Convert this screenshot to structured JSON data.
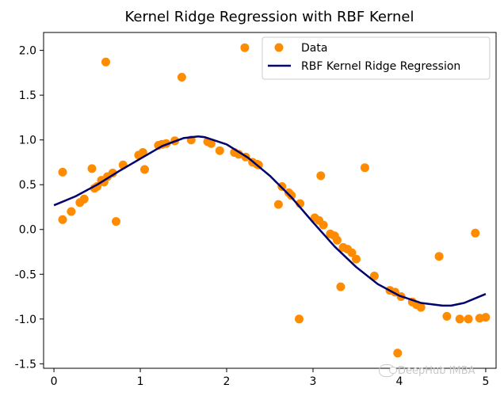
{
  "chart_data": {
    "type": "scatter",
    "title": "Kernel Ridge Regression with RBF Kernel",
    "xlabel": "",
    "ylabel": "",
    "xlim": [
      -0.12,
      5.12
    ],
    "ylim": [
      -1.55,
      2.2
    ],
    "x_ticks": [
      "0",
      "1",
      "2",
      "3",
      "4",
      "5"
    ],
    "y_ticks": [
      "-1.5",
      "-1.0",
      "-0.5",
      "0.0",
      "0.5",
      "1.0",
      "1.5",
      "2.0"
    ],
    "legend_position": "top-right",
    "series": [
      {
        "name": "Data",
        "kind": "scatter",
        "color": "#ff8c00",
        "points": [
          [
            0.1,
            0.64
          ],
          [
            0.1,
            0.11
          ],
          [
            0.2,
            0.2
          ],
          [
            0.3,
            0.3
          ],
          [
            0.35,
            0.34
          ],
          [
            0.44,
            0.68
          ],
          [
            0.47,
            0.46
          ],
          [
            0.5,
            0.48
          ],
          [
            0.55,
            0.55
          ],
          [
            0.58,
            0.53
          ],
          [
            0.6,
            1.87
          ],
          [
            0.62,
            0.59
          ],
          [
            0.68,
            0.63
          ],
          [
            0.72,
            0.09
          ],
          [
            0.8,
            0.72
          ],
          [
            0.98,
            0.83
          ],
          [
            1.03,
            0.86
          ],
          [
            1.05,
            0.67
          ],
          [
            1.21,
            0.94
          ],
          [
            1.25,
            0.95
          ],
          [
            1.3,
            0.96
          ],
          [
            1.4,
            0.99
          ],
          [
            1.48,
            1.7
          ],
          [
            1.59,
            1.0
          ],
          [
            1.78,
            0.98
          ],
          [
            1.82,
            0.96
          ],
          [
            1.92,
            0.88
          ],
          [
            2.09,
            0.86
          ],
          [
            2.14,
            0.84
          ],
          [
            2.21,
            2.03
          ],
          [
            2.22,
            0.81
          ],
          [
            2.3,
            0.75
          ],
          [
            2.35,
            0.73
          ],
          [
            2.37,
            0.72
          ],
          [
            2.6,
            0.28
          ],
          [
            2.64,
            0.48
          ],
          [
            2.72,
            0.41
          ],
          [
            2.75,
            0.38
          ],
          [
            2.84,
            -1.0
          ],
          [
            2.85,
            0.29
          ],
          [
            3.02,
            0.13
          ],
          [
            3.07,
            0.1
          ],
          [
            3.09,
            0.6
          ],
          [
            3.12,
            0.05
          ],
          [
            3.2,
            -0.05
          ],
          [
            3.25,
            -0.07
          ],
          [
            3.28,
            -0.12
          ],
          [
            3.32,
            -0.64
          ],
          [
            3.35,
            -0.2
          ],
          [
            3.4,
            -0.22
          ],
          [
            3.45,
            -0.26
          ],
          [
            3.5,
            -0.33
          ],
          [
            3.6,
            0.69
          ],
          [
            3.71,
            -0.52
          ],
          [
            3.89,
            -0.68
          ],
          [
            3.95,
            -0.7
          ],
          [
            3.98,
            -1.38
          ],
          [
            4.02,
            -0.75
          ],
          [
            4.15,
            -0.81
          ],
          [
            4.2,
            -0.84
          ],
          [
            4.25,
            -0.87
          ],
          [
            4.46,
            -0.3
          ],
          [
            4.55,
            -0.97
          ],
          [
            4.7,
            -1.0
          ],
          [
            4.8,
            -1.0
          ],
          [
            4.88,
            -0.04
          ],
          [
            4.93,
            -0.99
          ],
          [
            5.0,
            -0.98
          ]
        ]
      },
      {
        "name": "RBF Kernel Ridge Regression",
        "kind": "line",
        "color": "#00006e",
        "points": [
          [
            0.0,
            0.27
          ],
          [
            0.25,
            0.37
          ],
          [
            0.5,
            0.5
          ],
          [
            0.75,
            0.65
          ],
          [
            1.0,
            0.79
          ],
          [
            1.25,
            0.93
          ],
          [
            1.5,
            1.02
          ],
          [
            1.67,
            1.04
          ],
          [
            1.75,
            1.03
          ],
          [
            2.0,
            0.95
          ],
          [
            2.25,
            0.8
          ],
          [
            2.5,
            0.6
          ],
          [
            2.75,
            0.36
          ],
          [
            3.0,
            0.08
          ],
          [
            3.25,
            -0.19
          ],
          [
            3.5,
            -0.42
          ],
          [
            3.75,
            -0.61
          ],
          [
            4.0,
            -0.74
          ],
          [
            4.25,
            -0.82
          ],
          [
            4.5,
            -0.85
          ],
          [
            4.6,
            -0.85
          ],
          [
            4.75,
            -0.82
          ],
          [
            5.0,
            -0.72
          ]
        ]
      }
    ]
  },
  "watermark": {
    "text": "DeepHub IMBA",
    "icon": "wechat-icon"
  }
}
